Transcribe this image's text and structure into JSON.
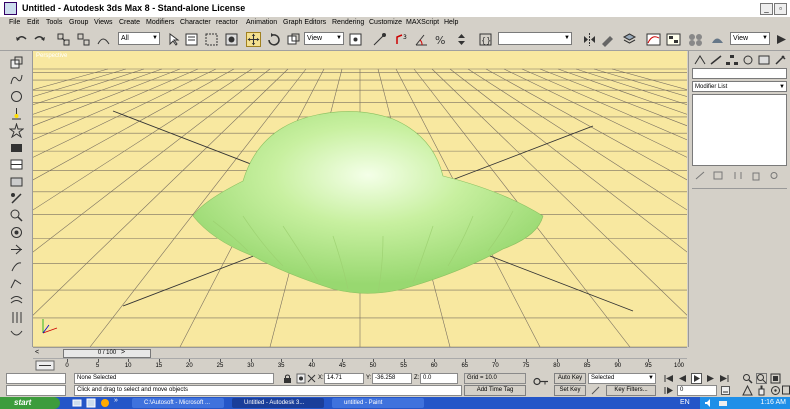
{
  "window": {
    "title": "Untitled - Autodesk 3ds Max 8 - Stand-alone License",
    "min_label": "_",
    "max_label": "▫",
    "close_label": "X"
  },
  "menu": [
    "File",
    "Edit",
    "Tools",
    "Group",
    "Views",
    "Create",
    "Modifiers",
    "Character",
    "reactor",
    "Animation",
    "Graph Editors",
    "Rendering",
    "Customize",
    "MAXScript",
    "Help"
  ],
  "toolbar": {
    "selection_filter": "All",
    "ref_coord": "View",
    "named_sel": "",
    "view_right": "View"
  },
  "viewport": {
    "label": "Perspective",
    "background": "#f8e8a0",
    "grid_color": "#7a7060",
    "object_color": "#c8f0a0"
  },
  "command_panel": {
    "object_name": "",
    "modifier_list": "Modifier List"
  },
  "timeline": {
    "frame_display": "0 / 100",
    "ticks": [
      0,
      5,
      10,
      15,
      20,
      25,
      30,
      35,
      40,
      45,
      50,
      55,
      60,
      65,
      70,
      75,
      80,
      85,
      90,
      95,
      100
    ]
  },
  "status": {
    "selection": "None Selected",
    "prompt": "Click and drag to select and move objects",
    "x_label": "X:",
    "x_value": "14.71",
    "y_label": "Y:",
    "y_value": "-36.258",
    "z_label": "Z:",
    "z_value": "0.0",
    "grid": "Grid = 10.0",
    "add_time_tag": "Add Time Tag",
    "auto_key": "Auto Key",
    "set_key": "Set Key",
    "key_mode": "Selected",
    "key_filters": "Key Filters...",
    "frame_field": "0"
  },
  "taskbar": {
    "start": "start",
    "tasks": [
      "C:\\Autosoft - Microsoft ...",
      "Untitled - Autodesk 3...",
      "untitled - Paint"
    ],
    "lang": "EN",
    "clock": "1:16 AM"
  }
}
